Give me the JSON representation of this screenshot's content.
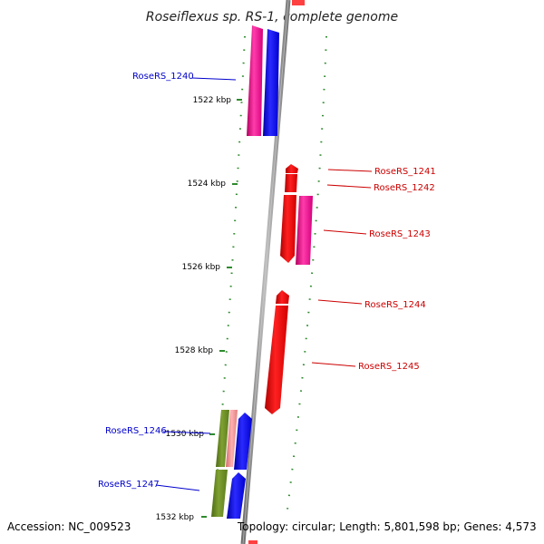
{
  "title": "Roseiflexus sp. RS-1, complete genome",
  "ticks": [
    "1522 kbp",
    "1524 kbp",
    "1526 kbp",
    "1528 kbp",
    "1530 kbp",
    "1532 kbp"
  ],
  "genes": [
    {
      "name": "RoseRS_1240",
      "color": "#0000cc"
    },
    {
      "name": "RoseRS_1241",
      "color": "#cc0000"
    },
    {
      "name": "RoseRS_1242",
      "color": "#cc0000"
    },
    {
      "name": "RoseRS_1243",
      "color": "#cc0000"
    },
    {
      "name": "RoseRS_1244",
      "color": "#cc0000"
    },
    {
      "name": "RoseRS_1245",
      "color": "#cc0000"
    },
    {
      "name": "RoseRS_1246",
      "color": "#0000cc"
    },
    {
      "name": "RoseRS_1247",
      "color": "#0000cc"
    }
  ],
  "colors": {
    "magenta": "#ff2aa0",
    "blue": "#0000ff",
    "red": "#ff0000",
    "olive": "#6b8e23",
    "pink": "#f08080",
    "backbone": "#8c8c8c",
    "dots": "#2e8b2e"
  },
  "footer": {
    "accession": "Accession: NC_009523",
    "info": "Topology: circular; Length: 5,801,598 bp; Genes: 4,573"
  }
}
